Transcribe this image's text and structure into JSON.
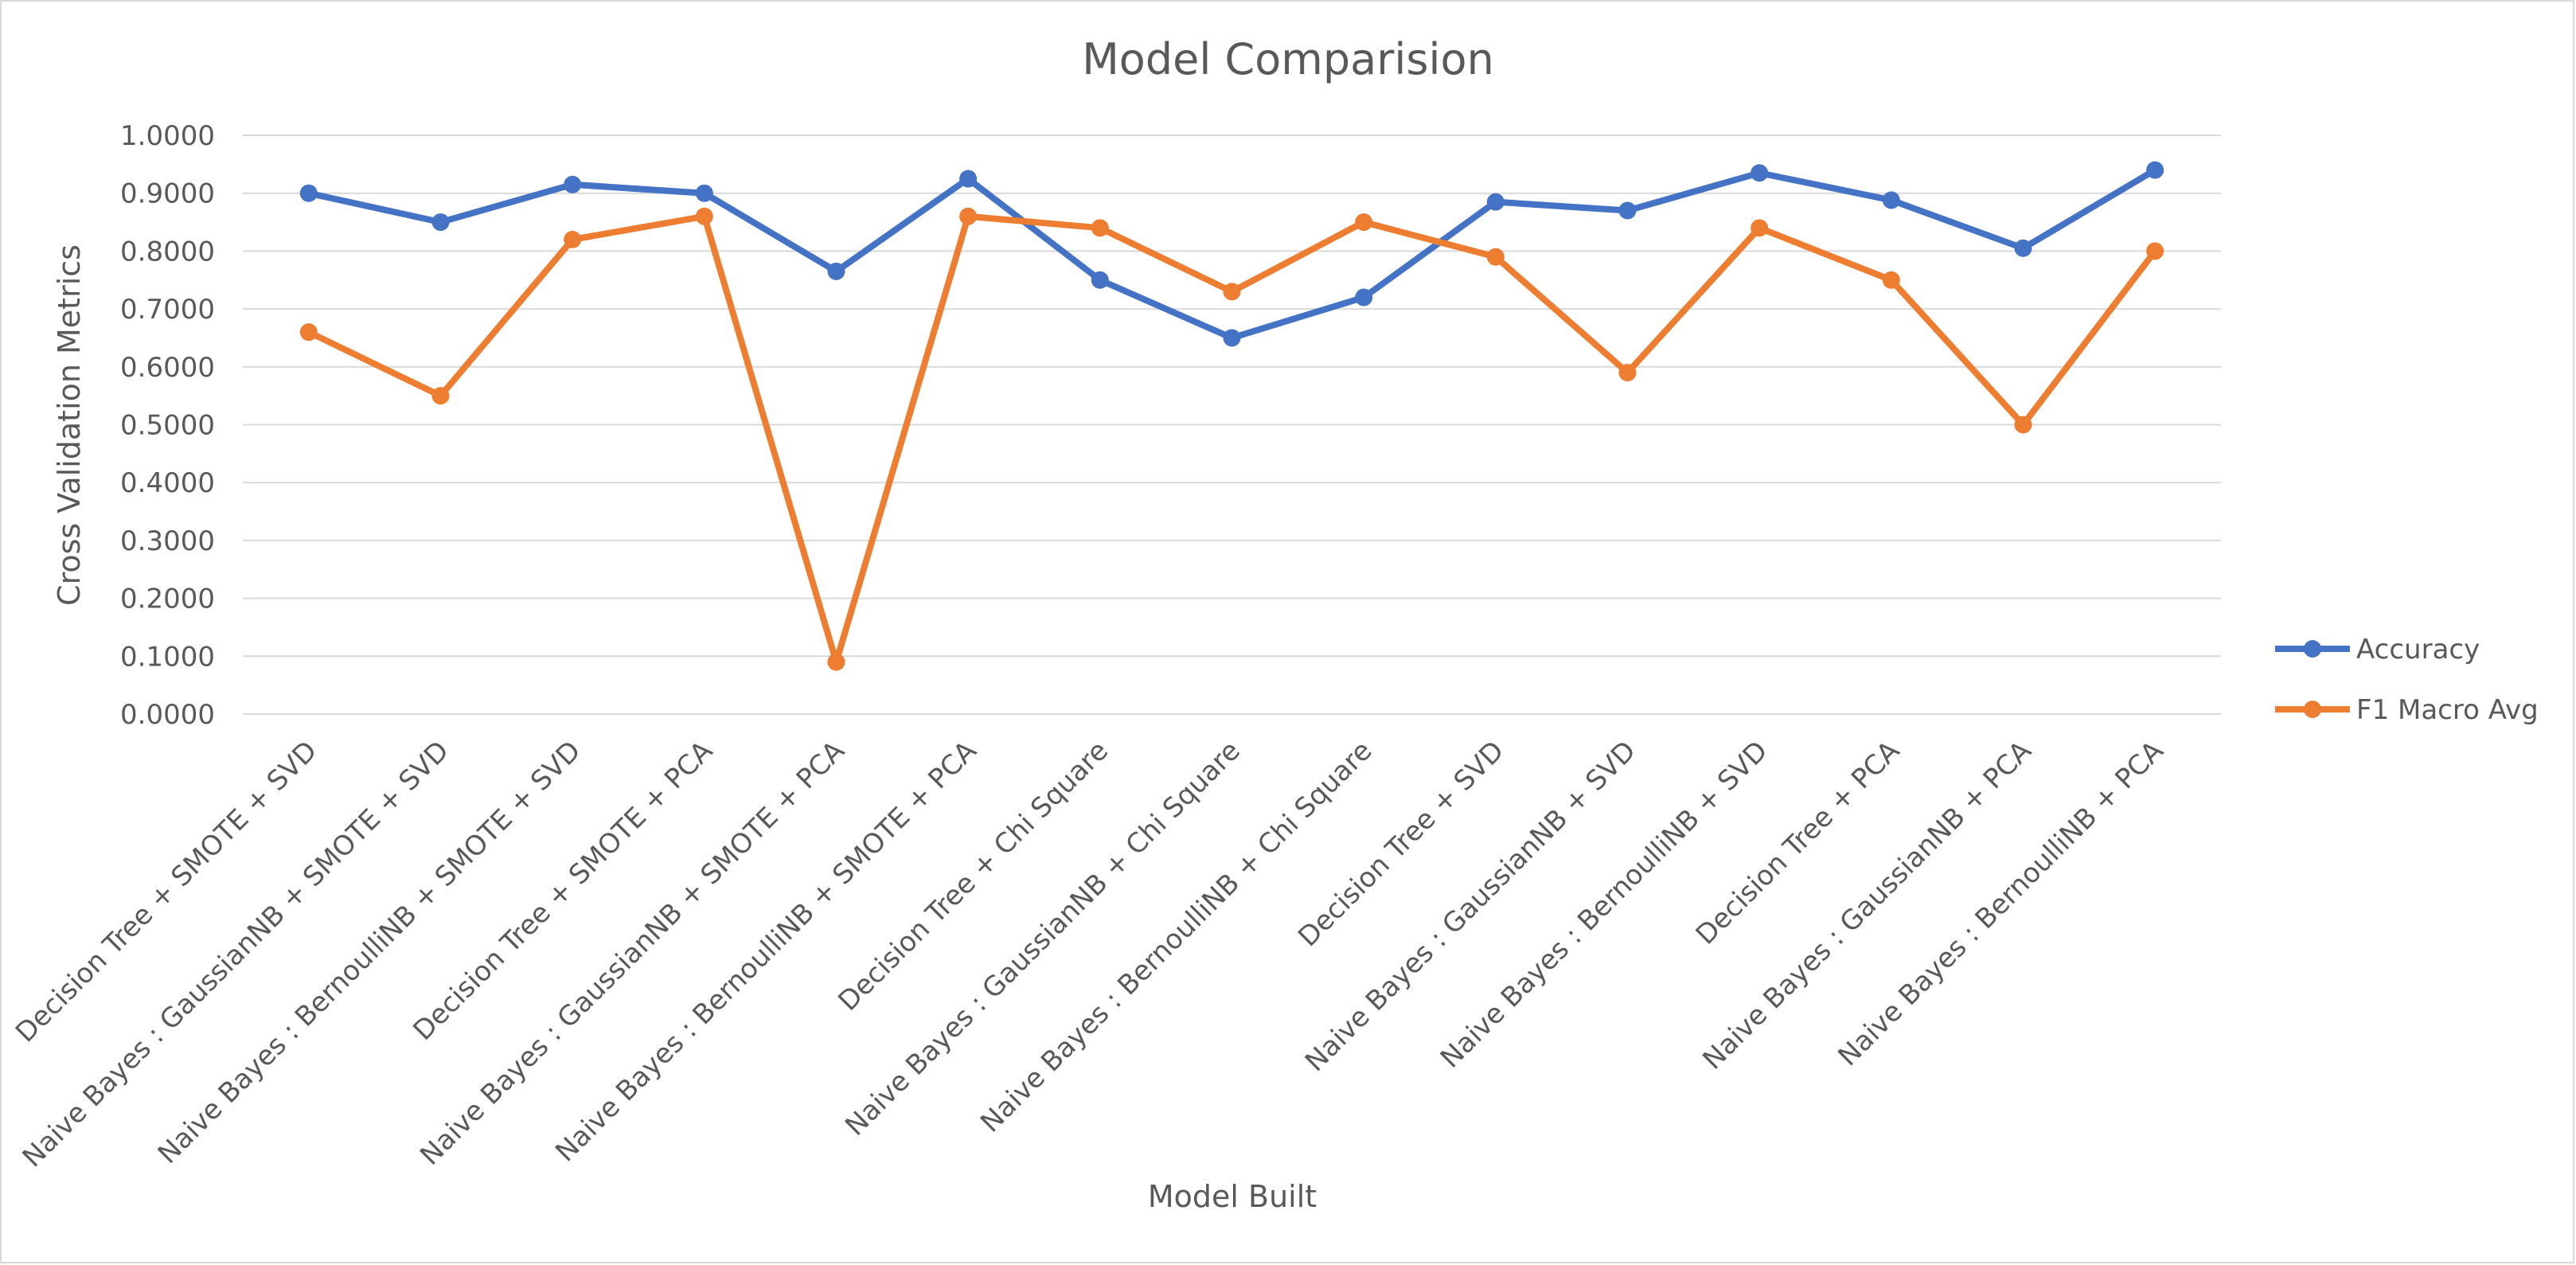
{
  "chart_data": {
    "type": "line",
    "title": "Model Comparision",
    "xlabel": "Model Built",
    "ylabel": "Cross Validation Metrics",
    "ylim": [
      0,
      1
    ],
    "yticks": [
      "0.0000",
      "0.1000",
      "0.2000",
      "0.3000",
      "0.4000",
      "0.5000",
      "0.6000",
      "0.7000",
      "0.8000",
      "0.9000",
      "1.0000"
    ],
    "grid": true,
    "legend_position": "right",
    "categories": [
      "Decision Tree + SMOTE + SVD",
      "Naive Bayes : GaussianNB  + SMOTE + SVD",
      "Naive Bayes : BernoulliNB  + SMOTE + SVD",
      "Decision Tree + SMOTE + PCA",
      "Naive Bayes : GaussianNB + SMOTE + PCA",
      "Naive Bayes : BernoulliNB + SMOTE + PCA",
      "Decision Tree + Chi Square",
      "Naive Bayes : GaussianNB + Chi Square",
      "Naive Bayes : BernoulliNB + Chi Square",
      "Decision Tree + SVD",
      "Naive Bayes : GaussianNB + SVD",
      "Naive Bayes : BernoulliNB + SVD",
      "Decision Tree + PCA",
      "Naive Bayes : GaussianNB + PCA",
      "Naive Bayes : BernoulliNB + PCA"
    ],
    "series": [
      {
        "name": "Accuracy",
        "color": "#4472c4",
        "values": [
          0.9,
          0.85,
          0.915,
          0.9,
          0.765,
          0.925,
          0.75,
          0.65,
          0.72,
          0.885,
          0.87,
          0.935,
          0.888,
          0.805,
          0.94
        ]
      },
      {
        "name": "F1 Macro Avg",
        "color": "#ed7d31",
        "values": [
          0.66,
          0.55,
          0.82,
          0.86,
          0.09,
          0.86,
          0.84,
          0.73,
          0.85,
          0.79,
          0.59,
          0.84,
          0.75,
          0.5,
          0.8
        ]
      }
    ]
  }
}
